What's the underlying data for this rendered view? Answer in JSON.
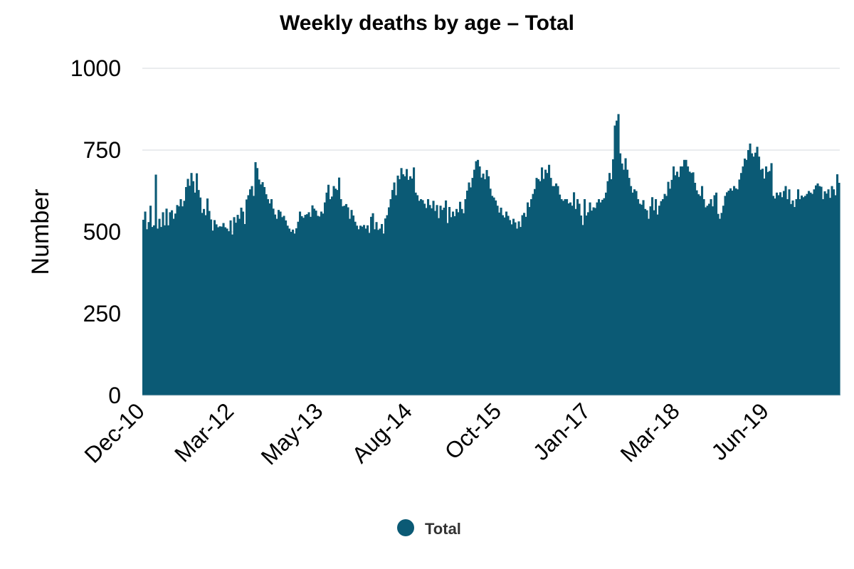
{
  "chart_data": {
    "type": "bar",
    "title": "Weekly deaths by age – Total",
    "xlabel": "",
    "ylabel": "Number",
    "ylim": [
      0,
      1000
    ],
    "yticks": [
      "0",
      "250",
      "500",
      "750",
      "1000"
    ],
    "x_tick_labels": [
      "Dec-10",
      "Mar-12",
      "May-13",
      "Aug-14",
      "Oct-15",
      "Jan-17",
      "Mar-18",
      "Jun-19"
    ],
    "x_range": [
      "Dec-10",
      "Apr-20"
    ],
    "grid": true,
    "legend_position": "bottom",
    "color": "#0b5a75",
    "series": [
      {
        "name": "Total",
        "values": [
          537,
          562,
          508,
          530,
          580,
          515,
          520,
          675,
          510,
          540,
          515,
          560,
          520,
          571,
          520,
          560,
          566,
          540,
          556,
          582,
          578,
          600,
          578,
          595,
          637,
          662,
          641,
          680,
          655,
          620,
          679,
          628,
          605,
          558,
          570,
          551,
          602,
          564,
          538,
          504,
          536,
          523,
          514,
          517,
          516,
          527,
          514,
          510,
          502,
          535,
          492,
          545,
          528,
          552,
          540,
          574,
          562,
          524,
          599,
          612,
          630,
          640,
          610,
          713,
          695,
          660,
          645,
          652,
          637,
          615,
          600,
          587,
          600,
          571,
          553,
          540,
          567,
          562,
          545,
          549,
          535,
          519,
          510,
          500,
          507,
          495,
          511,
          531,
          562,
          548,
          543,
          552,
          554,
          560,
          546,
          581,
          571,
          565,
          549,
          547,
          562,
          556,
          590,
          620,
          644,
          600,
          608,
          640,
          632,
          628,
          666,
          600,
          578,
          580,
          585,
          575,
          540,
          567,
          550,
          531,
          519,
          508,
          519,
          516,
          521,
          510,
          520,
          497,
          546,
          557,
          508,
          530,
          506,
          510,
          524,
          495,
          541,
          551,
          575,
          600,
          628,
          651,
          612,
          672,
          661,
          695,
          676,
          670,
          692,
          659,
          670,
          663,
          697,
          620,
          612,
          595,
          600,
          597,
          586,
          573,
          600,
          582,
          572,
          595,
          564,
          582,
          542,
          580,
          567,
          574,
          596,
          527,
          576,
          545,
          562,
          548,
          570,
          560,
          592,
          570,
          557,
          600,
          626,
          651,
          636,
          665,
          690,
          716,
          720,
          700,
          666,
          678,
          661,
          689,
          670,
          632,
          610,
          605,
          596,
          580,
          559,
          574,
          551,
          544,
          562,
          549,
          536,
          523,
          540,
          529,
          510,
          532,
          515,
          551,
          558,
          546,
          590,
          576,
          600,
          616,
          631,
          665,
          661,
          655,
          697,
          662,
          690,
          680,
          705,
          665,
          640,
          640,
          648,
          640,
          614,
          600,
          595,
          600,
          600,
          587,
          590,
          580,
          621,
          570,
          600,
          586,
          550,
          521,
          600,
          550,
          560,
          590,
          565,
          575,
          573,
          590,
          600,
          590,
          598,
          603,
          620,
          655,
          680,
          661,
          722,
          825,
          840,
          860,
          740,
          709,
          690,
          725,
          690,
          665,
          640,
          620,
          630,
          625,
          600,
          586,
          583,
          597,
          570,
          566,
          540,
          578,
          606,
          566,
          600,
          553,
          580,
          594,
          600,
          616,
          610,
          653,
          632,
          659,
          700,
          673,
          684,
          668,
          700,
          700,
          720,
          720,
          700,
          684,
          680,
          682,
          650,
          627,
          615,
          610,
          640,
          600,
          575,
          580,
          586,
          600,
          578,
          612,
          620,
          555,
          540,
          558,
          580,
          610,
          621,
          626,
          633,
          626,
          640,
          633,
          630,
          660,
          680,
          700,
          724,
          720,
          750,
          770,
          740,
          730,
          742,
          760,
          730,
          690,
          693,
          663,
          700,
          683,
          686,
          710,
          610,
          602,
          620,
          612,
          621,
          606,
          625,
          640,
          600,
          630,
          585,
          596,
          576,
          600,
          630,
          600,
          611,
          606,
          610,
          616,
          625,
          620,
          616,
          630,
          642,
          648,
          640,
          638,
          600,
          624,
          617,
          630,
          604,
          640,
          630,
          612,
          676,
          650
        ]
      }
    ]
  }
}
